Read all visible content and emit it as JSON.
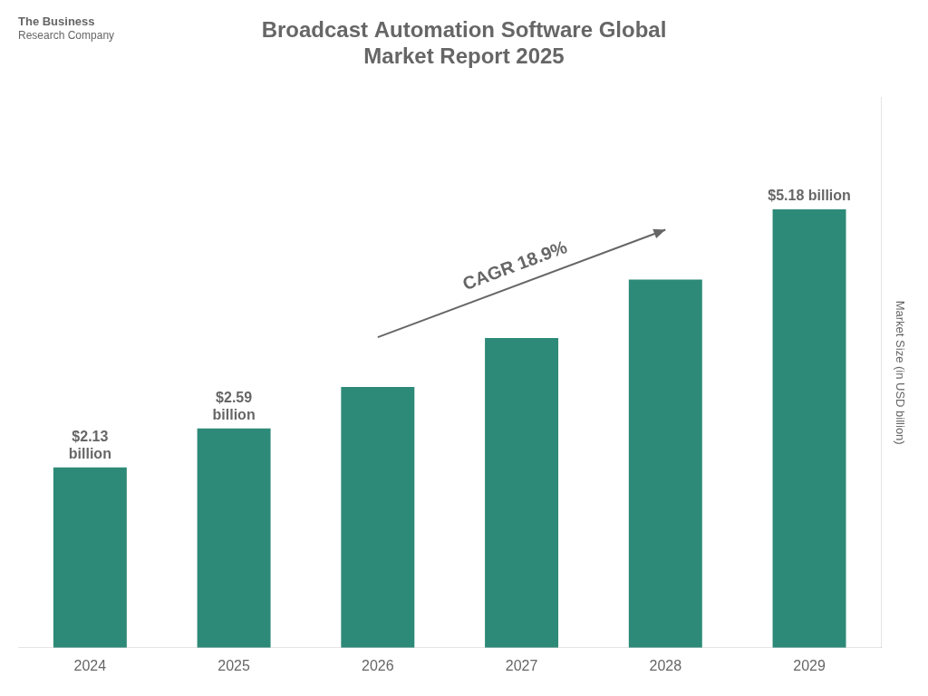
{
  "chart_data": {
    "type": "bar",
    "title": "Broadcast Automation Software Global\nMarket Report 2025",
    "categories": [
      "2024",
      "2025",
      "2026",
      "2027",
      "2028",
      "2029"
    ],
    "values": [
      2.13,
      2.59,
      3.08,
      3.66,
      4.35,
      5.18
    ],
    "value_labels": [
      "$2.13\nbillion",
      "$2.59\nbillion",
      null,
      null,
      null,
      "$5.18 billion"
    ],
    "data_labels": true,
    "color": "#2d8a78",
    "ylabel": "Market Size (in USD billion)",
    "ylim": [
      0,
      6.5
    ],
    "grid": false,
    "legend": false,
    "tick_labels": "x",
    "annotations": [
      {
        "text": "CAGR 18.9%"
      },
      {
        "text": "The Business\nResearch Company"
      }
    ]
  }
}
